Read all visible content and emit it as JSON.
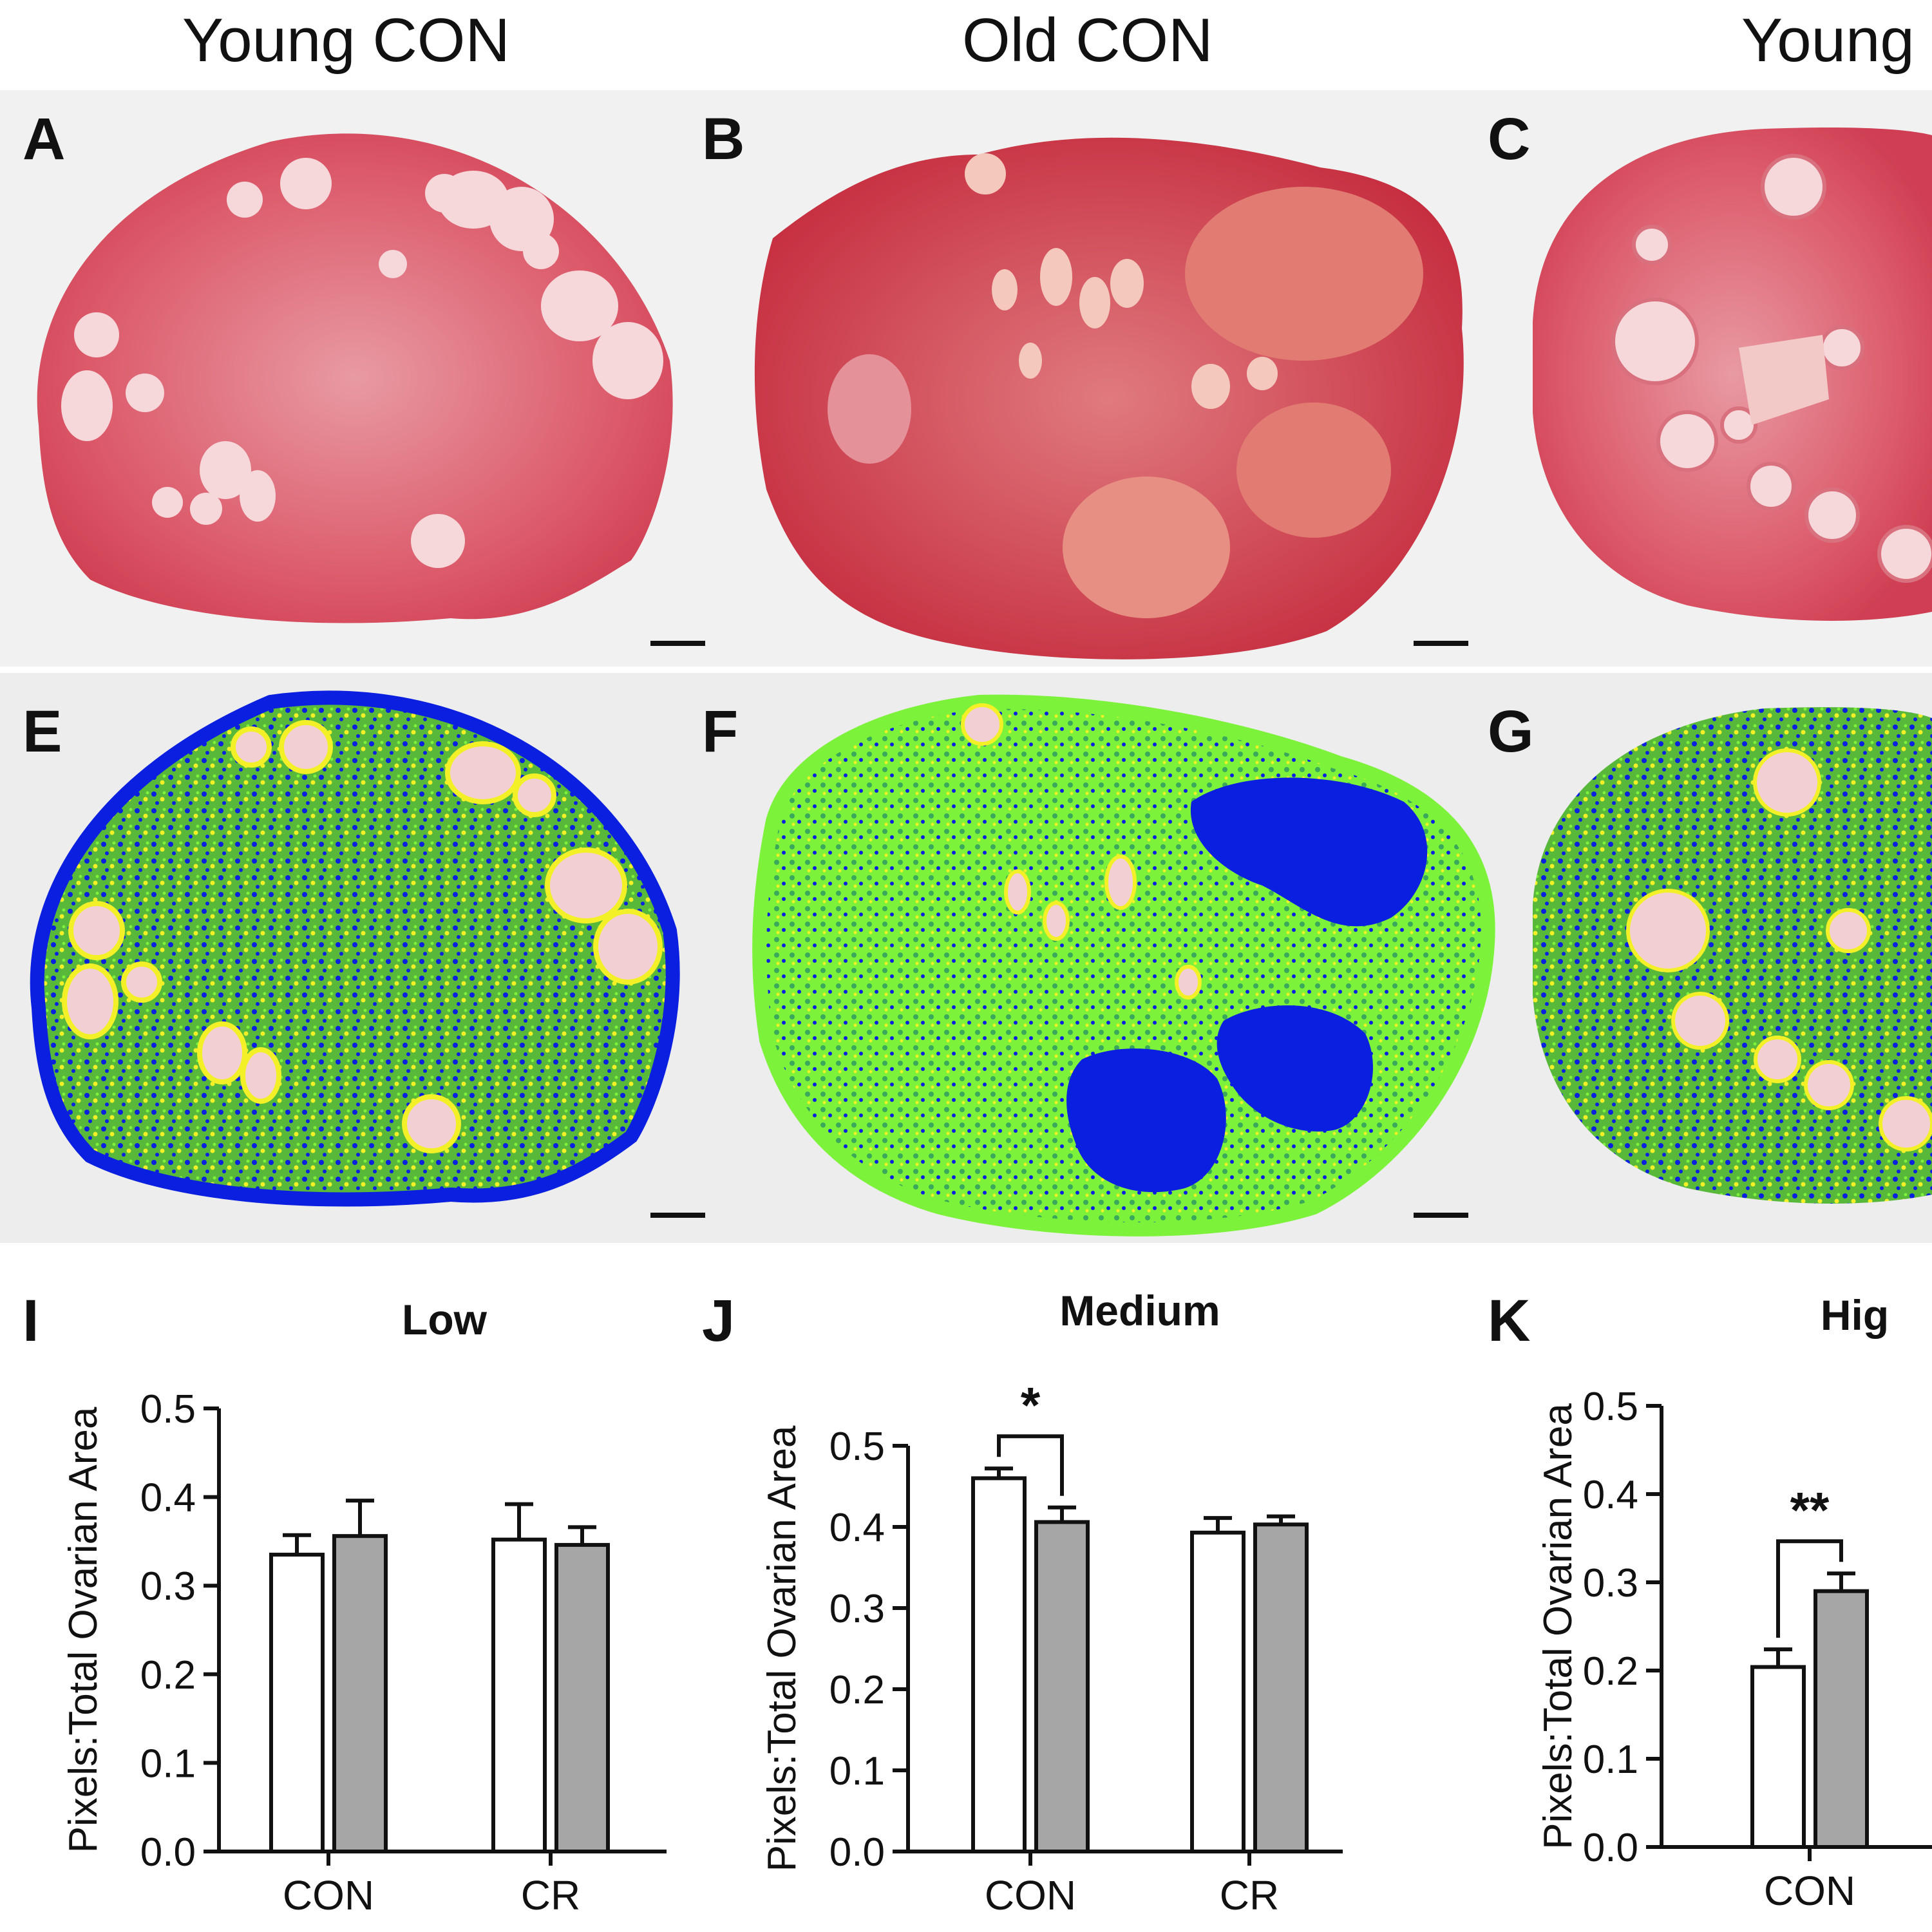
{
  "column_titles": [
    "Young CON",
    "Old CON",
    "Young"
  ],
  "panel_letters": {
    "row1": [
      "A",
      "B",
      "C"
    ],
    "row2": [
      "E",
      "F",
      "G"
    ],
    "charts": [
      "I",
      "J",
      "K"
    ]
  },
  "colors": {
    "he_stain": "#d8485c",
    "bin_low": "#0a1fe0",
    "bin_medium": "#7df23a",
    "bin_high": "#f3f027",
    "bar_young": "#ffffff",
    "bar_old": "#a6a6a6"
  },
  "chart_data": [
    {
      "type": "bar",
      "panel": "I",
      "title": "Low",
      "ylabel": "Pixels:Total Ovarian Area",
      "xlabel": "",
      "categories": [
        "CON",
        "CR"
      ],
      "ylim": [
        0,
        0.5
      ],
      "yticks": [
        "0.0",
        "0.1",
        "0.2",
        "0.3",
        "0.4",
        "0.5"
      ],
      "series": [
        {
          "values": [
            0.335,
            0.352
          ],
          "errors": [
            0.022,
            0.04
          ],
          "color": "#ffffff"
        },
        {
          "values": [
            0.356,
            0.346
          ],
          "errors": [
            0.04,
            0.02
          ],
          "color": "#a6a6a6"
        }
      ],
      "significance": []
    },
    {
      "type": "bar",
      "panel": "J",
      "title": "Medium",
      "ylabel": "Pixels:Total Ovarian Area",
      "xlabel": "",
      "categories": [
        "CON",
        "CR"
      ],
      "ylim": [
        0,
        0.5
      ],
      "yticks": [
        "0.0",
        "0.1",
        "0.2",
        "0.3",
        "0.4",
        "0.5"
      ],
      "series": [
        {
          "values": [
            0.46,
            0.393
          ],
          "errors": [
            0.012,
            0.018
          ],
          "color": "#ffffff"
        },
        {
          "values": [
            0.406,
            0.403
          ],
          "errors": [
            0.018,
            0.01
          ],
          "color": "#a6a6a6"
        }
      ],
      "significance": [
        {
          "category": 0,
          "label": "*"
        }
      ]
    },
    {
      "type": "bar",
      "panel": "K",
      "title": "Hig",
      "ylabel": "Pixels:Total Ovarian Area",
      "xlabel": "",
      "categories": [
        "CON"
      ],
      "ylim": [
        0,
        0.5
      ],
      "yticks": [
        "0.0",
        "0.1",
        "0.2",
        "0.3",
        "0.4",
        "0.5"
      ],
      "series": [
        {
          "values": [
            0.204
          ],
          "errors": [
            0.02
          ],
          "color": "#ffffff"
        },
        {
          "values": [
            0.29
          ],
          "errors": [
            0.02
          ],
          "color": "#a6a6a6"
        }
      ],
      "significance": [
        {
          "category": 0,
          "label": "**"
        }
      ]
    }
  ]
}
